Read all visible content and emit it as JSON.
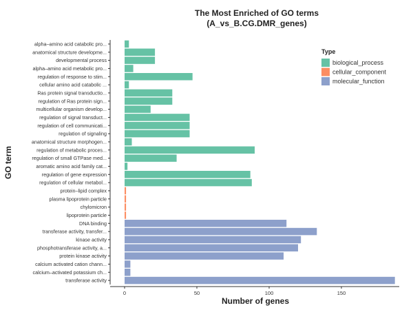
{
  "chart_data": {
    "type": "bar",
    "orientation": "horizontal",
    "title_line1": "The Most Enriched of GO terms",
    "title_line2": "(A_vs_B.CG.DMR_genes)",
    "xlabel": "Number of genes",
    "ylabel": "GO term",
    "xlim": [
      -10,
      190
    ],
    "xticks": [
      0,
      50,
      100,
      150
    ],
    "grid": false,
    "legend_position": "right",
    "legend_title": "Type",
    "types": [
      {
        "name": "biological_process",
        "color": "#66c2a5"
      },
      {
        "name": "cellular_component",
        "color": "#fc8d62"
      },
      {
        "name": "molecular_function",
        "color": "#8da0cb"
      }
    ],
    "categories": [
      "alpha–amino acid catabolic pro...",
      "anatomical structure developme...",
      "developmental process",
      "alpha–amino acid metabolic pro...",
      "regulation of response to stim...",
      "cellular amino acid catabolic ...",
      "Ras protein signal transductio...",
      "regulation of Ras protein sign...",
      "multicellular organism develop...",
      "regulation of signal transduct...",
      "regulation of cell communicati...",
      "regulation of signaling",
      "anatomical structure morphogen...",
      "regulation of metabolic proces...",
      "regulation of small GTPase med...",
      "aromatic amino acid family cat...",
      "regulation of gene expression",
      "regulation of cellular metabol...",
      "protein–lipid complex",
      "plasma lipoprotein particle",
      "chylomicron",
      "lipoprotein particle",
      "DNA binding",
      "transferase activity, transfer...",
      "kinase activity",
      "phosphotransferase activity, a...",
      "protein kinase activity",
      "calcium activated cation chann...",
      "calcium–activated potassium ch...",
      "transferase activity"
    ],
    "values": [
      3,
      21,
      21,
      6,
      47,
      3,
      33,
      33,
      18,
      45,
      45,
      45,
      5,
      90,
      36,
      2,
      87,
      88,
      1,
      1,
      1,
      1,
      112,
      133,
      122,
      120,
      110,
      4,
      4,
      187
    ],
    "type_index": [
      0,
      0,
      0,
      0,
      0,
      0,
      0,
      0,
      0,
      0,
      0,
      0,
      0,
      0,
      0,
      0,
      0,
      0,
      1,
      1,
      1,
      1,
      2,
      2,
      2,
      2,
      2,
      2,
      2,
      2
    ]
  }
}
